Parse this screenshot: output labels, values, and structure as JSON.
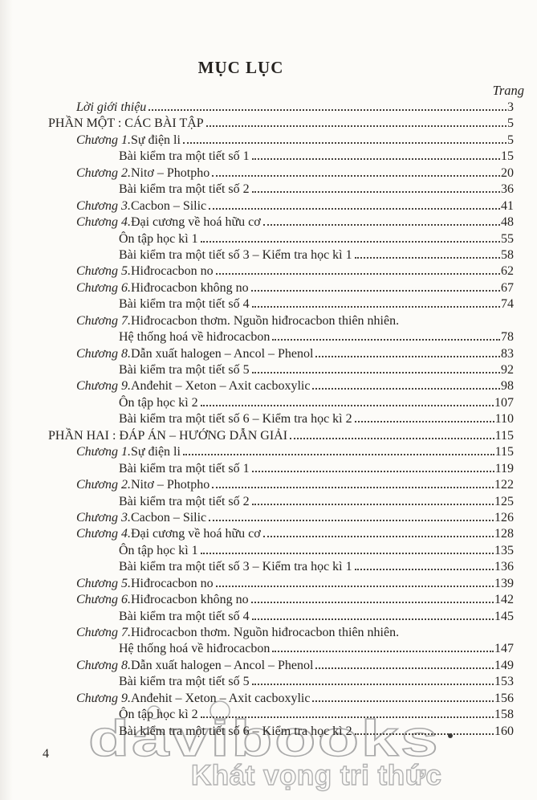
{
  "page": {
    "title": "MỤC LỤC",
    "column_header": "Trang",
    "footer_page_number": "4",
    "watermark": {
      "brand": "davibooks",
      "slogan": "Khát vọng tri thức"
    },
    "colors": {
      "text": "#262320",
      "leader_dots": "#45403a",
      "watermark_outline": "#a9a9a9",
      "paper": "#fcfbf8"
    }
  },
  "toc": {
    "rows": [
      {
        "level": "intro",
        "label": "",
        "title": "Lời giới thiệu",
        "italic": true,
        "page": "3",
        "dots": true
      },
      {
        "level": "part",
        "label": "",
        "title": "PHẦN MỘT : CÁC BÀI TẬP",
        "page": "5",
        "dots": true
      },
      {
        "level": "chapter",
        "label": "Chương 1.",
        "title": "Sự điện li",
        "page": "5",
        "dots": true
      },
      {
        "level": "sub",
        "label": "",
        "title": "Bài kiểm tra một tiết số 1",
        "page": "15",
        "dots": true
      },
      {
        "level": "chapter",
        "label": "Chương 2.",
        "title": "Nitơ – Photpho",
        "page": "20",
        "dots": true
      },
      {
        "level": "sub",
        "label": "",
        "title": "Bài kiểm tra một tiết số 2",
        "page": "36",
        "dots": true
      },
      {
        "level": "chapter",
        "label": "Chương 3.",
        "title": "Cacbon – Silic",
        "page": "41",
        "dots": true
      },
      {
        "level": "chapter",
        "label": "Chương 4.",
        "title": "Đại cương về hoá hữu cơ",
        "page": "48",
        "dots": true
      },
      {
        "level": "sub",
        "label": "",
        "title": "Ôn tập học kì 1",
        "page": "55",
        "dots": true
      },
      {
        "level": "sub",
        "label": "",
        "title": "Bài kiểm tra một tiết số 3 – Kiểm tra học kì 1",
        "page": "58",
        "dots": true
      },
      {
        "level": "chapter",
        "label": "Chương 5.",
        "title": "Hiđrocacbon no",
        "page": "62",
        "dots": true
      },
      {
        "level": "chapter",
        "label": "Chương 6.",
        "title": "Hiđrocacbon không no",
        "page": "67",
        "dots": true
      },
      {
        "level": "sub",
        "label": "",
        "title": "Bài kiểm tra một tiết số 4",
        "page": "74",
        "dots": true
      },
      {
        "level": "chapter",
        "label": "Chương 7.",
        "title": "Hiđrocacbon thơm. Nguồn hiđrocacbon thiên nhiên.",
        "page": "",
        "dots": false
      },
      {
        "level": "sub",
        "label": "",
        "title": "Hệ thống hoá về hiđrocacbon",
        "page": "78",
        "dots": true
      },
      {
        "level": "chapter",
        "label": "Chương 8.",
        "title": "Dẫn xuất halogen – Ancol – Phenol",
        "page": "83",
        "dots": true
      },
      {
        "level": "sub",
        "label": "",
        "title": "Bài kiểm tra một tiết số 5",
        "page": "92",
        "dots": true
      },
      {
        "level": "chapter",
        "label": "Chương 9.",
        "title": "Anđehit – Xeton – Axit cacboxylic",
        "page": "98",
        "dots": true
      },
      {
        "level": "sub",
        "label": "",
        "title": "Ôn tập học kì 2",
        "page": "107",
        "dots": true
      },
      {
        "level": "sub",
        "label": "",
        "title": "Bài kiểm tra một tiết số 6 – Kiểm tra học kì 2",
        "page": "110",
        "dots": true
      },
      {
        "level": "part",
        "label": "",
        "title": "PHẦN HAI : ĐÁP ÁN – HƯỚNG DẪN GIẢI",
        "page": "115",
        "dots": true
      },
      {
        "level": "chapter",
        "label": "Chương 1.",
        "title": "Sự điện li",
        "page": "115",
        "dots": true
      },
      {
        "level": "sub",
        "label": "",
        "title": "Bài kiểm tra một tiết số 1",
        "page": "119",
        "dots": true
      },
      {
        "level": "chapter",
        "label": "Chương 2.",
        "title": "Nitơ – Photpho",
        "page": "122",
        "dots": true
      },
      {
        "level": "sub",
        "label": "",
        "title": "Bài kiểm tra một tiết số 2",
        "page": "125",
        "dots": true
      },
      {
        "level": "chapter",
        "label": "Chương 3.",
        "title": "Cacbon – Silic",
        "page": "126",
        "dots": true
      },
      {
        "level": "chapter",
        "label": "Chương 4.",
        "title": "Đại cương về hoá hữu cơ",
        "page": "128",
        "dots": true
      },
      {
        "level": "sub",
        "label": "",
        "title": "Ôn tập học kì 1",
        "page": "135",
        "dots": true
      },
      {
        "level": "sub",
        "label": "",
        "title": "Bài kiểm tra một tiết số 3 – Kiểm tra học kì 1",
        "page": "136",
        "dots": true
      },
      {
        "level": "chapter",
        "label": "Chương 5.",
        "title": "Hiđrocacbon no",
        "page": "139",
        "dots": true
      },
      {
        "level": "chapter",
        "label": "Chương 6.",
        "title": "Hiđrocacbon không no",
        "page": "142",
        "dots": true
      },
      {
        "level": "sub",
        "label": "",
        "title": "Bài kiểm tra một tiết số 4",
        "page": "145",
        "dots": true
      },
      {
        "level": "chapter",
        "label": "Chương 7.",
        "title": "Hiđrocacbon thơm. Nguồn hiđrocacbon thiên nhiên.",
        "page": "",
        "dots": false
      },
      {
        "level": "sub",
        "label": "",
        "title": "Hệ thống hoá về hiđrocacbon",
        "page": "147",
        "dots": true
      },
      {
        "level": "chapter",
        "label": "Chương 8.",
        "title": "Dẫn xuất halogen – Ancol – Phenol",
        "page": "149",
        "dots": true
      },
      {
        "level": "sub",
        "label": "",
        "title": "Bài kiểm tra một tiết số 5",
        "page": "153",
        "dots": true
      },
      {
        "level": "chapter",
        "label": "Chương 9.",
        "title": "Anđehit – Xeton – Axit cacboxylic",
        "page": "156",
        "dots": true
      },
      {
        "level": "sub",
        "label": "",
        "title": "Ôn tập học kì 2",
        "page": "158",
        "dots": true
      },
      {
        "level": "sub",
        "label": "",
        "title": "Bài kiểm tra một tiết số 6 – Kiểm tra học kì 2",
        "page": "160",
        "dots": true
      }
    ]
  }
}
